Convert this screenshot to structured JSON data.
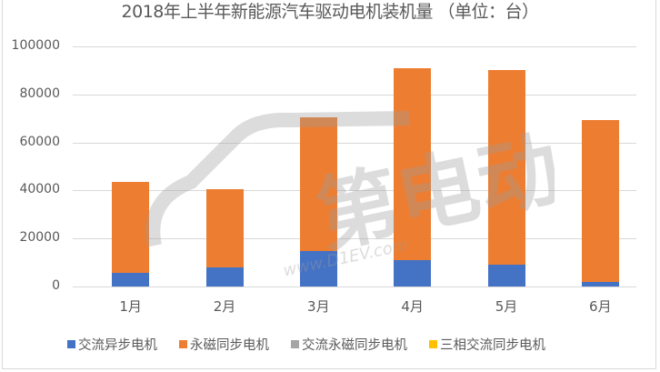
{
  "chart_data": {
    "type": "bar",
    "stacked": true,
    "title": "2018年上半年新能源汽车驱动电机装机量 （单位：台）",
    "xlabel": "",
    "ylabel": "",
    "ylim": [
      0,
      100000
    ],
    "yticks": [
      "0",
      "20000",
      "40000",
      "60000",
      "80000",
      "100000"
    ],
    "grid": true,
    "legend_position": "bottom",
    "categories": [
      "1月",
      "2月",
      "3月",
      "4月",
      "5月",
      "6月"
    ],
    "series": [
      {
        "name": "交流异步电机",
        "color": "#4472C4",
        "values": [
          5700,
          8000,
          14800,
          11000,
          9100,
          2000
        ]
      },
      {
        "name": "永磁同步电机",
        "color": "#ED7D31",
        "values": [
          37900,
          32500,
          55700,
          80000,
          81100,
          67300
        ]
      },
      {
        "name": "交流永磁同步电机",
        "color": "#A5A5A5",
        "values": [
          0,
          0,
          0,
          0,
          0,
          0
        ]
      },
      {
        "name": "三相交流同步电机",
        "color": "#FFC000",
        "values": [
          0,
          0,
          0,
          0,
          0,
          0
        ]
      }
    ],
    "totals": [
      43600,
      40500,
      70500,
      91000,
      90200,
      69300
    ]
  },
  "watermark": "第一电动 www.D1EV.com"
}
